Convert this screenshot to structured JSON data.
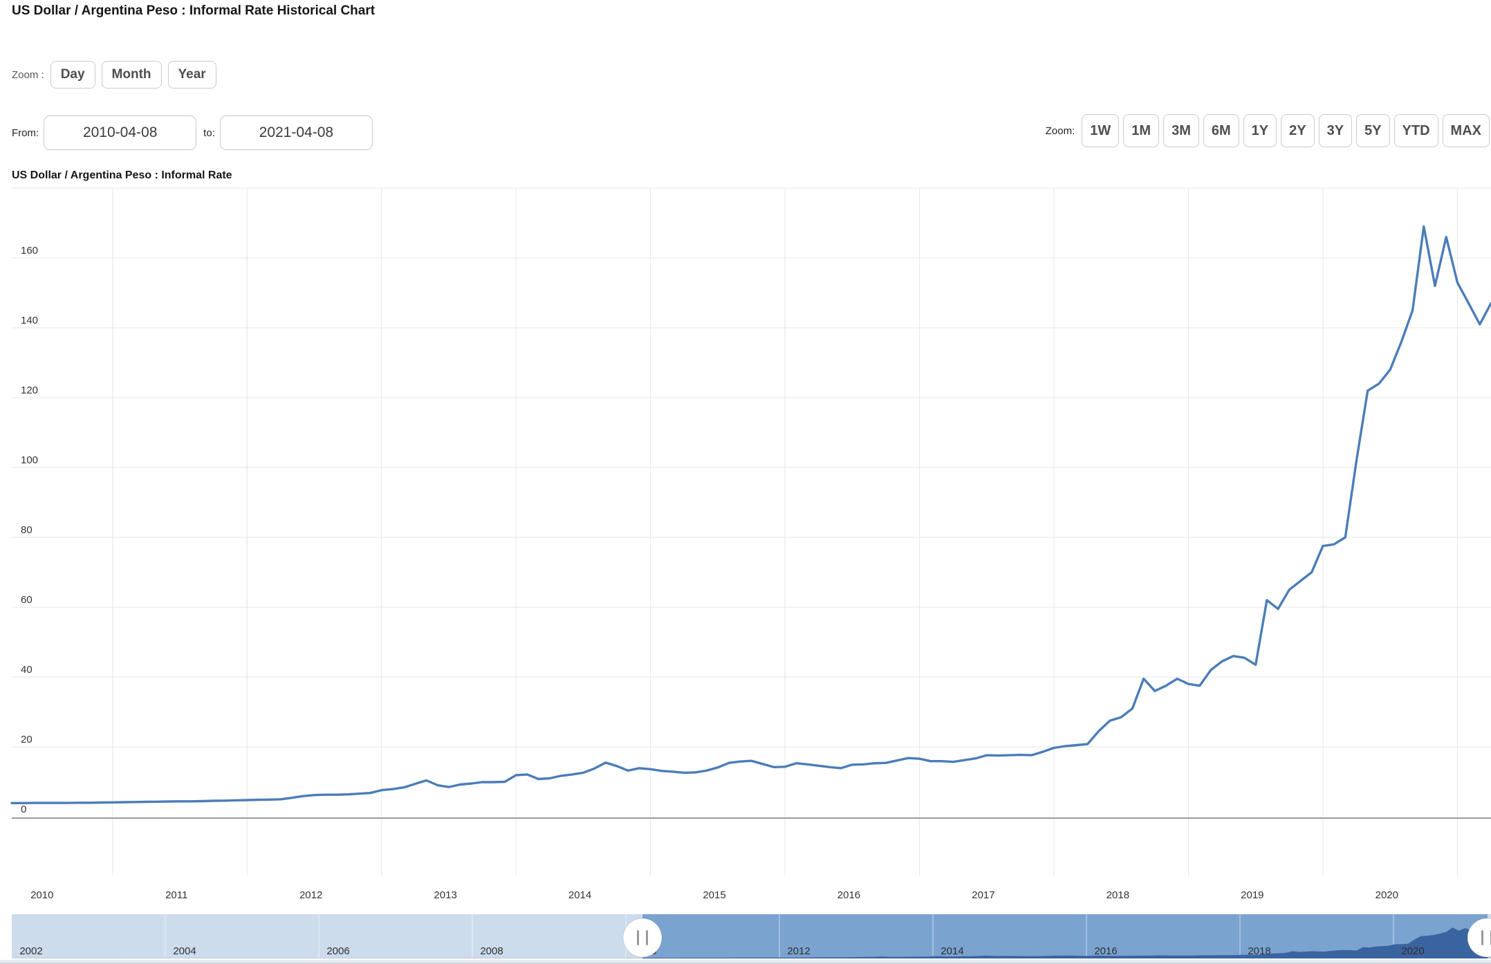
{
  "page": {
    "title": "US Dollar / Argentina Peso : Informal Rate Historical Chart"
  },
  "controls": {
    "zoom_label": "Zoom :",
    "zoom_buttons": [
      "Day",
      "Month",
      "Year"
    ],
    "from_label": "From:",
    "from_value": "2010-04-08",
    "to_label": "to:",
    "to_value": "2021-04-08",
    "range_label": "Zoom:",
    "range_buttons": [
      "1W",
      "1M",
      "3M",
      "6M",
      "1Y",
      "2Y",
      "3Y",
      "5Y",
      "YTD",
      "MAX"
    ]
  },
  "chart_data": {
    "type": "line",
    "title": "US Dollar / Argentina Peso : Informal Rate",
    "series_name": "USD to ARS informal exchange rate",
    "interval": "monthly",
    "x_start": "2010-04",
    "x_end": "2021-04",
    "xlabel": "",
    "ylabel": "",
    "ylim": [
      0,
      180
    ],
    "y_ticks": [
      0,
      20,
      40,
      60,
      80,
      100,
      120,
      140,
      160
    ],
    "x_tick_labels": [
      "2010",
      "2011",
      "2012",
      "2013",
      "2014",
      "2015",
      "2016",
      "2017",
      "2018",
      "2019",
      "2020"
    ],
    "grid": true,
    "legend": false,
    "values": [
      3.9,
      3.9,
      3.95,
      3.95,
      3.95,
      3.95,
      4.0,
      4.0,
      4.05,
      4.1,
      4.15,
      4.2,
      4.25,
      4.3,
      4.35,
      4.4,
      4.4,
      4.45,
      4.55,
      4.6,
      4.7,
      4.75,
      4.85,
      4.9,
      5.0,
      5.4,
      5.9,
      6.2,
      6.3,
      6.3,
      6.4,
      6.6,
      6.8,
      7.6,
      7.9,
      8.4,
      9.4,
      10.4,
      9.0,
      8.5,
      9.2,
      9.5,
      9.9,
      9.9,
      10.0,
      11.9,
      12.1,
      10.8,
      11.0,
      11.7,
      12.1,
      12.6,
      13.8,
      15.5,
      14.5,
      13.2,
      13.9,
      13.6,
      13.1,
      12.9,
      12.6,
      12.7,
      13.2,
      14.1,
      15.4,
      15.8,
      16.0,
      15.1,
      14.2,
      14.3,
      15.3,
      15.0,
      14.6,
      14.2,
      13.9,
      14.9,
      15.0,
      15.3,
      15.4,
      16.1,
      16.8,
      16.6,
      15.9,
      15.9,
      15.7,
      16.2,
      16.7,
      17.6,
      17.5,
      17.6,
      17.7,
      17.6,
      18.6,
      19.7,
      20.2,
      20.5,
      20.8,
      24.5,
      27.5,
      28.5,
      31.0,
      39.5,
      36.0,
      37.5,
      39.5,
      38.0,
      37.5,
      42.0,
      44.5,
      46.0,
      45.5,
      43.5,
      62.0,
      59.5,
      65.0,
      67.5,
      70.0,
      77.5,
      78.0,
      80.0,
      102,
      122,
      124,
      128,
      136,
      145,
      169,
      152,
      166,
      153,
      147,
      141,
      147
    ],
    "colors": {
      "line": "#4b7db8",
      "grid": "#e6e6e6",
      "axis_line": "#9a9a9a",
      "label": "#333333"
    },
    "navigator": {
      "range_start": "2002-01",
      "range_end": "2021-04",
      "selected_from": "2010-04-08",
      "selected_to": "2021-04-08",
      "x_tick_labels": [
        "2002",
        "2004",
        "2006",
        "2008",
        "2010",
        "2012",
        "2014",
        "2016",
        "2018",
        "2020"
      ],
      "pre_series": [
        [
          2002.0,
          1.5
        ],
        [
          2002.25,
          3.0
        ],
        [
          2002.5,
          3.8
        ],
        [
          2002.75,
          3.6
        ],
        [
          2003.0,
          3.3
        ],
        [
          2003.5,
          2.9
        ],
        [
          2004.0,
          2.95
        ],
        [
          2005.0,
          2.9
        ],
        [
          2006.0,
          3.07
        ],
        [
          2007.0,
          3.15
        ],
        [
          2008.0,
          3.2
        ],
        [
          2008.75,
          3.35
        ],
        [
          2009.0,
          3.75
        ],
        [
          2009.5,
          3.85
        ],
        [
          2010.1,
          3.9
        ]
      ],
      "colors": {
        "selected_bg": "#7ba3d0",
        "mask": "#cadaec",
        "series_fill": "#3a64a0",
        "handle_bg": "#ffffff",
        "handle_grip": "#999999"
      }
    }
  }
}
